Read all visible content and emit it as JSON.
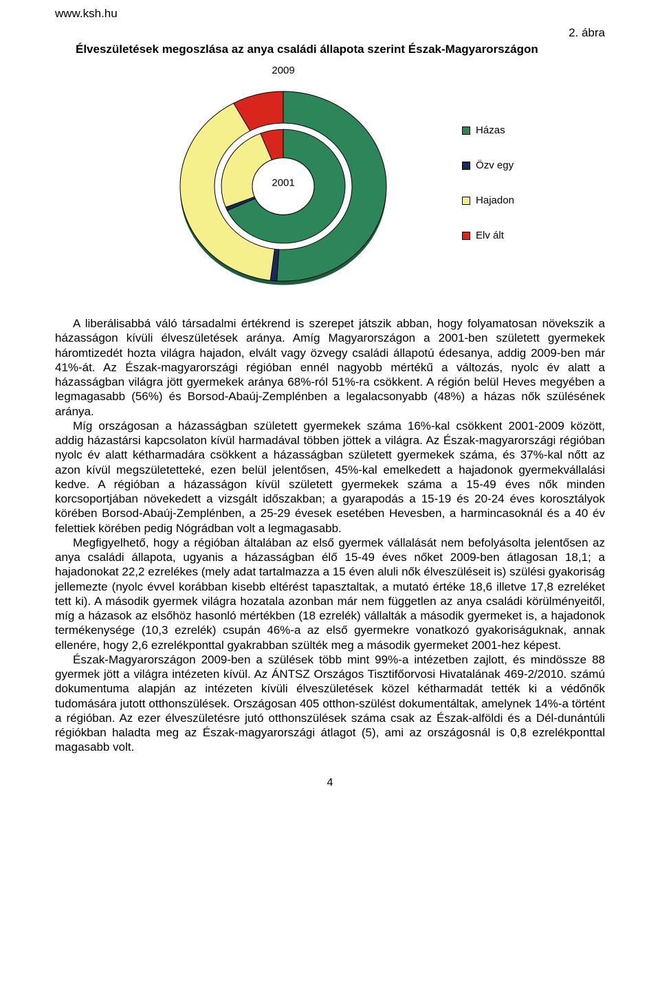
{
  "header": {
    "site_url": "www.ksh.hu",
    "figure_label": "2. ábra"
  },
  "chart": {
    "title": "Élveszületések megoszlása az anya családi állapota szerint Észak-Magyarországon",
    "type": "nested-donut",
    "outer_ring": {
      "label": "2009",
      "segments": [
        {
          "name": "Házas",
          "value": 51,
          "color": "#2d8659"
        },
        {
          "name": "Özvegy",
          "value": 1,
          "color": "#1a2a5a"
        },
        {
          "name": "Hajadon",
          "value": 40,
          "color": "#f5f08c"
        },
        {
          "name": "Elvált",
          "value": 8,
          "color": "#d9261c"
        }
      ]
    },
    "inner_ring": {
      "label": "2001",
      "segments": [
        {
          "name": "Házas",
          "value": 68,
          "color": "#2d8659"
        },
        {
          "name": "Özvegy",
          "value": 1,
          "color": "#1a2a5a"
        },
        {
          "name": "Hajadon",
          "value": 25,
          "color": "#f5f08c"
        },
        {
          "name": "Elvált",
          "value": 6,
          "color": "#d9261c"
        }
      ]
    },
    "background_color": "#ffffff",
    "stroke_color": "#000000",
    "outer_radius": 150,
    "outer_inner_radius": 100,
    "inner_radius": 90,
    "inner_inner_radius": 45,
    "legend": {
      "items": [
        {
          "label": "Házas",
          "color": "#2d8659"
        },
        {
          "label": "Özv egy",
          "color": "#1a2a5a"
        },
        {
          "label": "Hajadon",
          "color": "#f5f08c"
        },
        {
          "label": "Elv ált",
          "color": "#d9261c"
        }
      ]
    }
  },
  "paragraphs": [
    "A liberálisabbá váló társadalmi értékrend is szerepet játszik abban, hogy folyamatosan növekszik a házasságon kívüli élveszületések aránya. Amíg Magyarországon a 2001-ben született gyermekek háromtizedét hozta világra hajadon, elvált vagy özvegy családi állapotú édesanya, addig 2009-ben már 41%-át. Az Észak-magyarországi régióban ennél nagyobb mértékű a változás, nyolc év alatt a házasságban világra jött gyermekek aránya 68%-ról 51%-ra csökkent. A régión belül Heves megyében a legmagasabb (56%) és Borsod-Abaúj-Zemplénben a legalacsonyabb (48%) a házas nők szülésének aránya.",
    "Míg országosan a házasságban született gyermekek száma 16%-kal csökkent 2001-2009 között, addig házastársi kapcsolaton kívül harmadával többen jöttek a világra. Az Észak-magyarországi régióban nyolc év alatt kétharmadára csökkent a házasságban született gyermekek száma, és 37%-kal nőtt az azon kívül megszületetteké, ezen belül jelentősen, 45%-kal emelkedett a hajadonok gyermekvállalási kedve. A régióban a házasságon kívül született gyermekek száma a 15-49 éves nők minden korcsoportjában növekedett a vizsgált időszakban; a gyarapodás a 15-19 és 20-24 éves korosztályok körében Borsod-Abaúj-Zemplénben, a 25-29 évesek esetében Hevesben, a harmincasoknál és a 40 év felettiek körében pedig Nógrádban volt a legmagasabb.",
    "Megfigyelhető, hogy a régióban általában az első gyermek vállalását nem befolyásolta jelentősen az anya családi állapota, ugyanis a házasságban élő 15-49 éves nőket 2009-ben átlagosan 18,1; a hajadonokat 22,2 ezrelékes (mely adat tartalmazza a 15 éven aluli nők élveszüléseit is) szülési gyakoriság jellemezte (nyolc évvel korábban kisebb eltérést tapasztaltak, a mutató értéke 18,6 illetve 17,8 ezreléket tett ki). A második gyermek világra hozatala azonban már nem független az anya családi körülményeitől, míg a házasok az elsőhöz hasonló mértékben (18 ezrelék) vállalták a második gyermeket is, a hajadonok termékenysége (10,3 ezrelék) csupán 46%-a az első gyermekre vonatkozó gyakoriságuknak, annak ellenére, hogy 2,6 ezrelékponttal gyakrabban szülték meg a második gyermeket 2001-hez képest.",
    "Észak-Magyarországon 2009-ben a szülések több mint 99%-a intézetben zajlott, és mindössze 88 gyermek jött a világra intézeten kívül. Az ÁNTSZ Országos Tisztifőorvosi Hivatalának 469-2/2010. számú dokumentuma alapján az intézeten kívüli élveszületések közel kétharmadát tették ki a védőnők tudomására jutott otthonszülések. Országosan 405 otthon-szülést dokumentáltak, amelynek 14%-a történt a régióban. Az ezer élveszületésre jutó otthonszülések száma csak az Észak-alföldi és a Dél-dunántúli régiókban haladta meg az Észak-magyarországi átlagot (5), ami az országosnál is 0,8 ezrelékponttal magasabb volt."
  ],
  "page_number": "4"
}
